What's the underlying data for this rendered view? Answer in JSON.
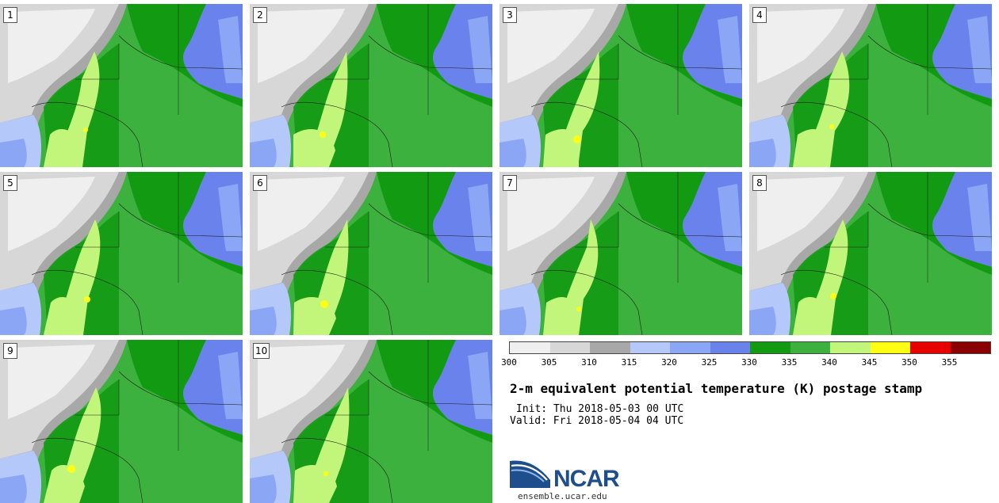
{
  "panels": [
    {
      "label": "1"
    },
    {
      "label": "2"
    },
    {
      "label": "3"
    },
    {
      "label": "4"
    },
    {
      "label": "5"
    },
    {
      "label": "6"
    },
    {
      "label": "7"
    },
    {
      "label": "8"
    },
    {
      "label": "9"
    },
    {
      "label": "10"
    }
  ],
  "legend": {
    "colors": [
      "#efefef",
      "#d7d7d7",
      "#a8a8a8",
      "#b4c8fa",
      "#8aa6f5",
      "#6a82ec",
      "#139a13",
      "#3db13d",
      "#c2f67a",
      "#ffff14",
      "#e60000",
      "#8a0000"
    ],
    "ticks": [
      "300",
      "305",
      "310",
      "315",
      "320",
      "325",
      "330",
      "335",
      "340",
      "345",
      "350",
      "355"
    ]
  },
  "title": "2-m equivalent potential temperature (K) postage stamp",
  "init": "Init: Thu 2018-05-03 00 UTC",
  "valid": "Valid: Fri 2018-05-04 04 UTC",
  "logo": {
    "text": "NCAR",
    "url": "ensemble.ucar.edu"
  }
}
